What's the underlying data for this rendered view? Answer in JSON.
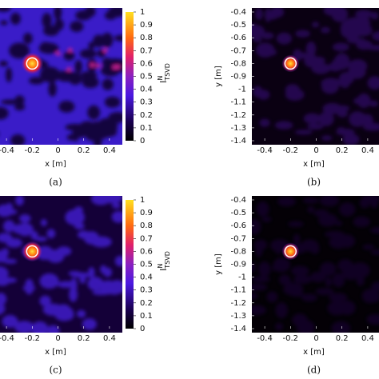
{
  "chart_data": [
    {
      "type": "heatmap",
      "label": "(a)",
      "x_label": "x [m]",
      "xlim": [
        -0.5,
        0.5
      ],
      "xticks": [
        -0.4,
        -0.2,
        0,
        0.2,
        0.4
      ],
      "ylim": [
        -1.4,
        -0.4
      ],
      "zlim": [
        0,
        1
      ],
      "colorbar_ticks": [
        0,
        0.1,
        0.2,
        0.3,
        0.4,
        0.5,
        0.6,
        0.7,
        0.8,
        0.9,
        1
      ],
      "colorbar_label": {
        "base": "I",
        "sup": "N",
        "sub": "TSVD"
      },
      "marker": {
        "x": -0.2,
        "y": -0.8
      }
    },
    {
      "type": "heatmap",
      "label": "(b)",
      "x_label": "x [m]",
      "y_label": "y [m]",
      "xlim": [
        -0.5,
        0.5
      ],
      "xticks": [
        -0.4,
        -0.2,
        0,
        0.2,
        0.4
      ],
      "ylim": [
        -1.4,
        -0.4
      ],
      "yticks": [
        -0.4,
        -0.5,
        -0.6,
        -0.7,
        -0.8,
        -0.9,
        -1,
        -1.1,
        -1.2,
        -1.3,
        -1.4
      ],
      "marker": {
        "x": -0.2,
        "y": -0.8
      }
    },
    {
      "type": "heatmap",
      "label": "(c)",
      "x_label": "x [m]",
      "xlim": [
        -0.5,
        0.5
      ],
      "xticks": [
        -0.4,
        -0.2,
        0,
        0.2,
        0.4
      ],
      "ylim": [
        -1.4,
        -0.4
      ],
      "zlim": [
        0,
        1
      ],
      "colorbar_ticks": [
        0,
        0.1,
        0.2,
        0.3,
        0.4,
        0.5,
        0.6,
        0.7,
        0.8,
        0.9,
        1
      ],
      "colorbar_label": {
        "base": "I",
        "sup": "N",
        "sub": "TSVD"
      },
      "marker": {
        "x": -0.2,
        "y": -0.8
      }
    },
    {
      "type": "heatmap",
      "label": "(d)",
      "x_label": "x [m]",
      "y_label": "y [m]",
      "xlim": [
        -0.5,
        0.5
      ],
      "xticks": [
        -0.4,
        -0.2,
        0,
        0.2,
        0.4
      ],
      "ylim": [
        -1.4,
        -0.4
      ],
      "yticks": [
        -0.4,
        -0.5,
        -0.6,
        -0.7,
        -0.8,
        -0.9,
        -1,
        -1.1,
        -1.2,
        -1.3,
        -1.4
      ],
      "marker": {
        "x": -0.2,
        "y": -0.8
      }
    }
  ]
}
